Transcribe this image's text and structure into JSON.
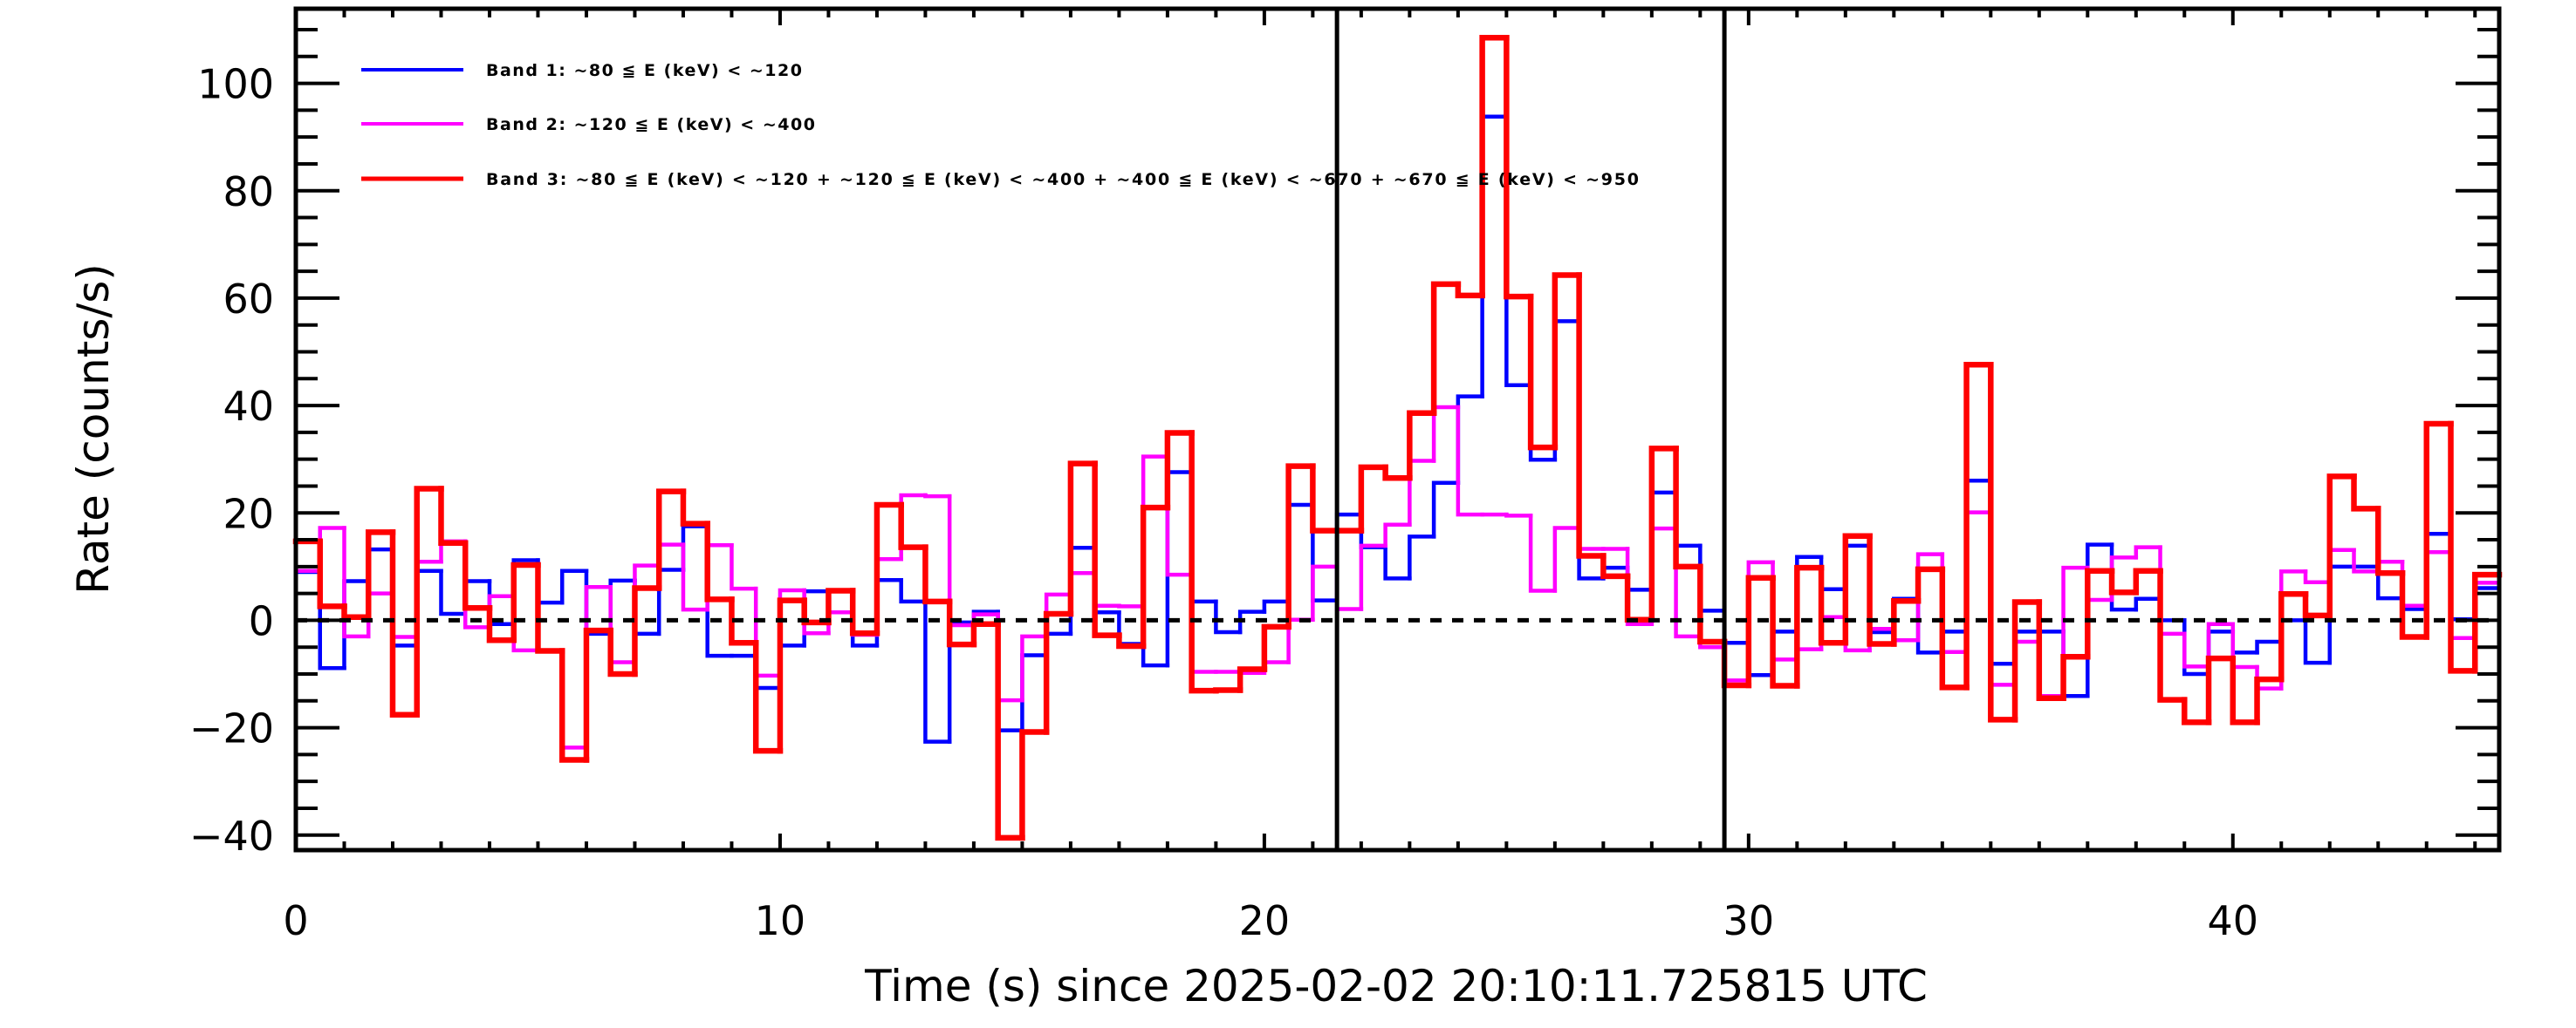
{
  "chart_data": {
    "type": "line",
    "style": "histogram-step",
    "title": "",
    "xlabel": "Time (s) since 2025-02-02 20:10:11.725815 UTC",
    "ylabel": "Rate (counts/s)",
    "xlim": [
      0,
      45.5
    ],
    "ylim": [
      -42.8,
      113.9
    ],
    "x_ticks": [
      0,
      10,
      20,
      30,
      40
    ],
    "x_tick_labels": [
      "0",
      "10",
      "20",
      "30",
      "40"
    ],
    "y_ticks": [
      -40,
      -20,
      0,
      20,
      40,
      60,
      80,
      100
    ],
    "y_tick_labels": [
      "−40",
      "−20",
      "0",
      "20",
      "40",
      "60",
      "80",
      "100"
    ],
    "x_minor_step": 1,
    "y_minor_step": 5,
    "grid": false,
    "legend_position": "top-left",
    "bin_start": 0,
    "bin_width": 0.5,
    "zero_line": 0,
    "vertical_markers": [
      21.5,
      29.5
    ],
    "series": [
      {
        "name": "Band 1: ~80 ≦ E (keV) < ~120",
        "color": "#0000ff",
        "values": [
          9,
          -8.9,
          7.3,
          13.2,
          -4.7,
          9.2,
          1.2,
          7.3,
          -0.7,
          11.2,
          3.3,
          9.2,
          -2.5,
          7.4,
          -2.5,
          9.4,
          17.5,
          -6.6,
          -6.6,
          -12.6,
          -4.7,
          5.4,
          5.4,
          -4.7,
          7.5,
          3.5,
          -22.6,
          -0.4,
          1.6,
          -20.5,
          -6.5,
          -2.5,
          13.5,
          1.5,
          -4.4,
          -8.4,
          27.6,
          3.5,
          -2.2,
          1.6,
          3.5,
          21.5,
          3.7,
          19.7,
          13.6,
          7.8,
          15.6,
          25.6,
          41.7,
          93.8,
          43.8,
          29.9,
          55.7,
          7.8,
          9.8,
          5.7,
          23.8,
          13.9,
          1.8,
          -4.2,
          -10.2,
          -2.1,
          11.8,
          5.8,
          13.9,
          -2.2,
          4.0,
          -6.0,
          -2.1,
          26.0,
          -8.1,
          -2.1,
          -2.1,
          -14.1,
          14.1,
          2.0,
          4.0,
          0.0,
          -10.0,
          -2.1,
          -6.0,
          -4.0,
          0.0,
          -7.9,
          10.0,
          10.0,
          4.1,
          2.1,
          16.1,
          0.2,
          6.0
        ]
      },
      {
        "name": "Band 2: ~120 ≦ E (keV) < ~400",
        "color": "#ff00ff",
        "values": [
          9.2,
          17.2,
          -3.0,
          5.0,
          -3.1,
          10.9,
          14.7,
          -1.3,
          4.5,
          -5.6,
          -5.6,
          -23.7,
          6.2,
          -7.8,
          10.2,
          14.1,
          2.0,
          14.0,
          5.9,
          -10.3,
          5.6,
          -2.4,
          1.5,
          -2.7,
          11.4,
          23.3,
          23.1,
          -0.9,
          1.1,
          -14.9,
          -3.0,
          4.8,
          8.8,
          2.7,
          2.6,
          30.5,
          8.5,
          -9.6,
          -9.6,
          -9.8,
          -7.8,
          0.1,
          10.0,
          2.1,
          13.9,
          17.8,
          29.7,
          39.7,
          19.7,
          19.7,
          19.5,
          5.5,
          17.2,
          13.3,
          13.3,
          -0.7,
          17.1,
          -3.0,
          -5.0,
          -11.2,
          10.8,
          -7.3,
          -5.4,
          0.6,
          -5.6,
          -1.6,
          -3.7,
          12.3,
          -5.9,
          20.1,
          -12.0,
          -4.0,
          -14.1,
          9.8,
          3.8,
          11.7,
          13.6,
          -2.5,
          -8.6,
          -0.7,
          -8.7,
          -12.7,
          9.1,
          7.1,
          13.1,
          9.1,
          10.9,
          2.7,
          12.7,
          -3.3,
          7.0
        ]
      },
      {
        "name": "Band 3: ~80 ≦ E (keV) < ~120 + ~120 ≦ E (keV) < ~400 + ~400 ≦ E (keV) < ~670 + ~670 ≦ E (keV) < ~950",
        "color": "#ff0000",
        "values": [
          14.7,
          2.6,
          0.6,
          16.4,
          -17.6,
          24.5,
          14.4,
          2.3,
          -3.7,
          10.3,
          -5.7,
          -26.0,
          -1.9,
          -10.0,
          6.0,
          24.0,
          18.0,
          3.9,
          -4.2,
          -24.3,
          3.7,
          -0.4,
          5.5,
          -2.4,
          21.5,
          13.6,
          3.5,
          -4.5,
          -0.7,
          -40.5,
          -20.8,
          1.2,
          29.2,
          -2.8,
          -4.8,
          21.0,
          34.9,
          -13.1,
          -13.0,
          -9.1,
          -1.2,
          28.7,
          16.7,
          16.7,
          28.5,
          26.5,
          38.6,
          62.6,
          60.5,
          108.5,
          60.3,
          32.2,
          64.3,
          12.0,
          8.2,
          0.1,
          32.0,
          10.0,
          -4.0,
          -12.1,
          7.9,
          -12.2,
          9.8,
          -4.2,
          15.7,
          -4.4,
          3.6,
          9.5,
          -12.5,
          47.6,
          -18.5,
          3.4,
          -14.5,
          -6.8,
          9.2,
          5.2,
          9.2,
          -14.8,
          -19.0,
          -7.1,
          -19.0,
          -11.0,
          4.9,
          0.9,
          26.8,
          20.8,
          8.8,
          -3.1,
          36.6,
          -9.4,
          8.5
        ]
      }
    ]
  }
}
